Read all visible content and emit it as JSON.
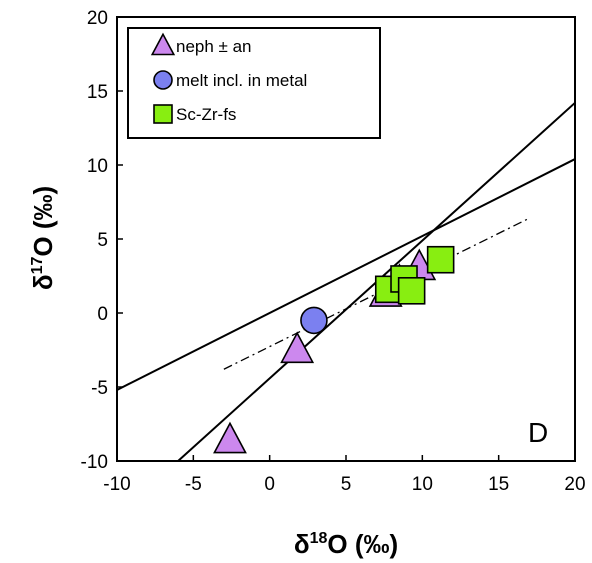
{
  "chart_data": {
    "type": "scatter",
    "panel_label": "D",
    "xlabel": {
      "prefix": "δ",
      "sup": "18",
      "suffix": "O (‰)"
    },
    "ylabel": {
      "prefix": "δ",
      "sup": "17",
      "suffix": "O (‰)"
    },
    "xlim": [
      -10,
      20
    ],
    "ylim": [
      -10,
      20
    ],
    "xticks": [
      "-10",
      "-5",
      "0",
      "5",
      "10",
      "15",
      "20"
    ],
    "yticks": [
      "-10",
      "-5",
      "0",
      "5",
      "10",
      "15",
      "20"
    ],
    "grid": false,
    "legend_position": "top-left",
    "series": [
      {
        "name": "neph ± an",
        "marker": "triangle",
        "color": "#cc88ee",
        "points": [
          [
            -2.6,
            -8.6
          ],
          [
            1.8,
            -2.5
          ],
          [
            7.6,
            1.3
          ],
          [
            9.8,
            3.1
          ],
          [
            8.5,
            2.1
          ]
        ]
      },
      {
        "name": "melt incl. in metal",
        "marker": "circle",
        "color": "#7b80f0",
        "points": [
          [
            2.9,
            -0.5
          ]
        ]
      },
      {
        "name": "Sc-Zr-fs",
        "marker": "square",
        "color": "#88ee11",
        "points": [
          [
            7.8,
            1.6
          ],
          [
            8.8,
            2.3
          ],
          [
            9.3,
            1.5
          ],
          [
            11.2,
            3.6
          ]
        ]
      }
    ],
    "lines": [
      {
        "style": "solid",
        "from": [
          -10,
          -5.2
        ],
        "to": [
          20,
          10.4
        ]
      },
      {
        "style": "solid",
        "from": [
          -6,
          -10
        ],
        "to": [
          20,
          14.2
        ]
      },
      {
        "style": "dash-dot",
        "from": [
          -3,
          -3.8
        ],
        "to": [
          17,
          6.4
        ]
      }
    ]
  }
}
